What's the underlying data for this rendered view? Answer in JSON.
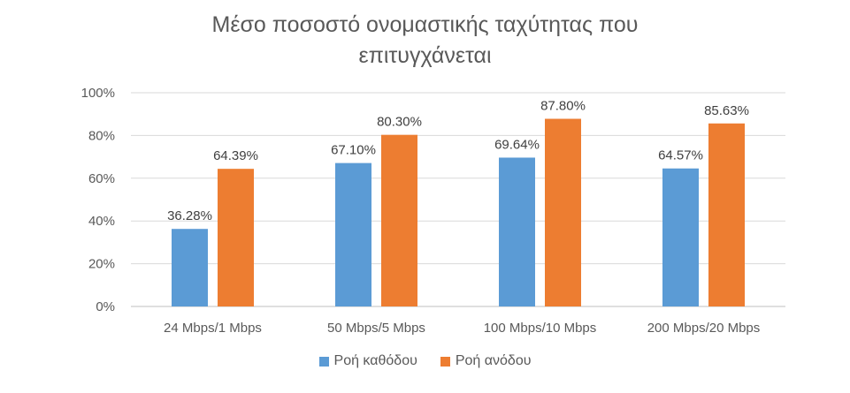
{
  "chart_data": {
    "type": "bar",
    "title_lines": [
      "Μέσο ποσοστό ονομαστικής ταχύτητας που",
      "επιτυγχάνεται"
    ],
    "xlabel": "",
    "ylabel": "",
    "ylim": [
      0,
      100
    ],
    "yticks": [
      {
        "value": 0,
        "label": "0%"
      },
      {
        "value": 20,
        "label": "20%"
      },
      {
        "value": 40,
        "label": "40%"
      },
      {
        "value": 60,
        "label": "60%"
      },
      {
        "value": 80,
        "label": "80%"
      },
      {
        "value": 100,
        "label": "100%"
      }
    ],
    "categories": [
      "24 Mbps/1 Mbps",
      "50 Mbps/5 Mbps",
      "100 Mbps/10 Mbps",
      "200 Mbps/20 Mbps"
    ],
    "series": [
      {
        "name": "Ροή καθόδου",
        "color": "#5b9bd5",
        "values": [
          36.28,
          67.1,
          69.64,
          64.57
        ],
        "labels": [
          "36.28%",
          "67.10%",
          "69.64%",
          "64.57%"
        ]
      },
      {
        "name": "Ροή ανόδου",
        "color": "#ed7d31",
        "values": [
          64.39,
          80.3,
          87.8,
          85.63
        ],
        "labels": [
          "64.39%",
          "80.30%",
          "87.80%",
          "85.63%"
        ]
      }
    ],
    "grid": true,
    "legend_position": "bottom"
  }
}
